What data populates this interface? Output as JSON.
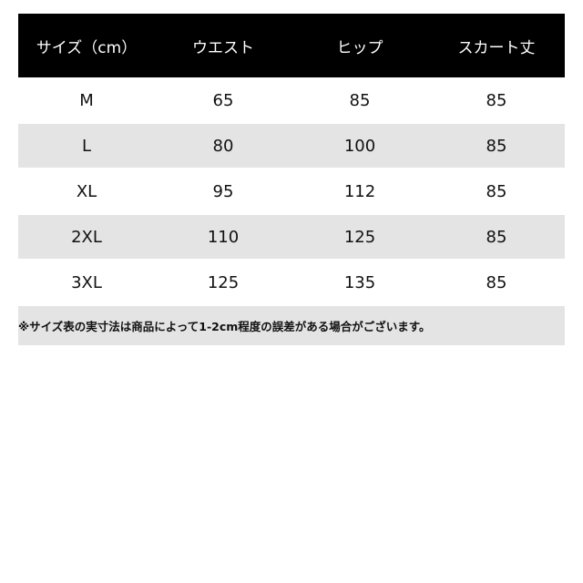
{
  "table": {
    "header": [
      "サイズ（cm）",
      "ウエスト",
      "ヒップ",
      "スカート丈"
    ],
    "rows": [
      [
        "M",
        65,
        85,
        85
      ],
      [
        "L",
        80,
        100,
        85
      ],
      [
        "XL",
        95,
        112,
        85
      ],
      [
        "2XL",
        110,
        125,
        85
      ],
      [
        "3XL",
        125,
        135,
        85
      ]
    ],
    "note": "※サイズ表の実寸法は商品によって1-2cm程度の誤差がある場合がございます。"
  }
}
